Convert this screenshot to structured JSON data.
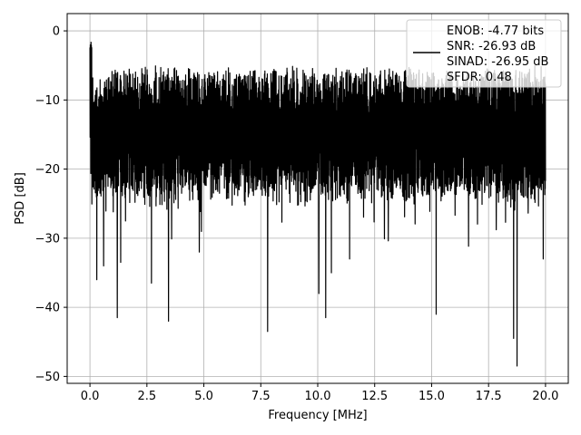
{
  "chart_data": {
    "type": "line",
    "xlabel": "Frequency [MHz]",
    "ylabel": "PSD [dB]",
    "xlim": [
      -1.0,
      21.0
    ],
    "ylim": [
      -51.0,
      2.5
    ],
    "xticks": [
      0.0,
      2.5,
      5.0,
      7.5,
      10.0,
      12.5,
      15.0,
      17.5,
      20.0
    ],
    "xtick_labels": [
      "0.0",
      "2.5",
      "5.0",
      "7.5",
      "10.0",
      "12.5",
      "15.0",
      "17.5",
      "20.0"
    ],
    "yticks": [
      0,
      -10,
      -20,
      -30,
      -40,
      -50
    ],
    "ytick_labels": [
      "0",
      "−10",
      "−20",
      "−30",
      "−40",
      "−50"
    ],
    "grid": true,
    "line_color": "#000000",
    "legend": {
      "placement": "upper right",
      "entries": [
        "ENOB: -4.77 bits",
        "SNR: -26.93 dB",
        "SINAD: -26.95 dB",
        "SFDR: 0.48"
      ]
    },
    "series": [
      {
        "x_range": [
          0.0,
          20.0
        ],
        "features": {
          "near_zero_peak_max": -1.5,
          "upper_envelope_typical": -5.0,
          "median_level": -15.0,
          "lower_envelope_typical": -24.0,
          "deep_notches": [
            {
              "x": 0.3,
              "y": -36.0
            },
            {
              "x": 0.6,
              "y": -34.0
            },
            {
              "x": 1.2,
              "y": -41.5
            },
            {
              "x": 1.35,
              "y": -33.5
            },
            {
              "x": 2.7,
              "y": -36.5
            },
            {
              "x": 3.45,
              "y": -42.0
            },
            {
              "x": 4.8,
              "y": -32.0
            },
            {
              "x": 7.8,
              "y": -43.5
            },
            {
              "x": 10.05,
              "y": -38.0
            },
            {
              "x": 10.35,
              "y": -41.5
            },
            {
              "x": 10.6,
              "y": -35.0
            },
            {
              "x": 11.4,
              "y": -33.0
            },
            {
              "x": 15.2,
              "y": -41.0
            },
            {
              "x": 18.6,
              "y": -44.5
            },
            {
              "x": 18.75,
              "y": -48.5
            },
            {
              "x": 19.9,
              "y": -33.0
            }
          ]
        }
      }
    ]
  }
}
